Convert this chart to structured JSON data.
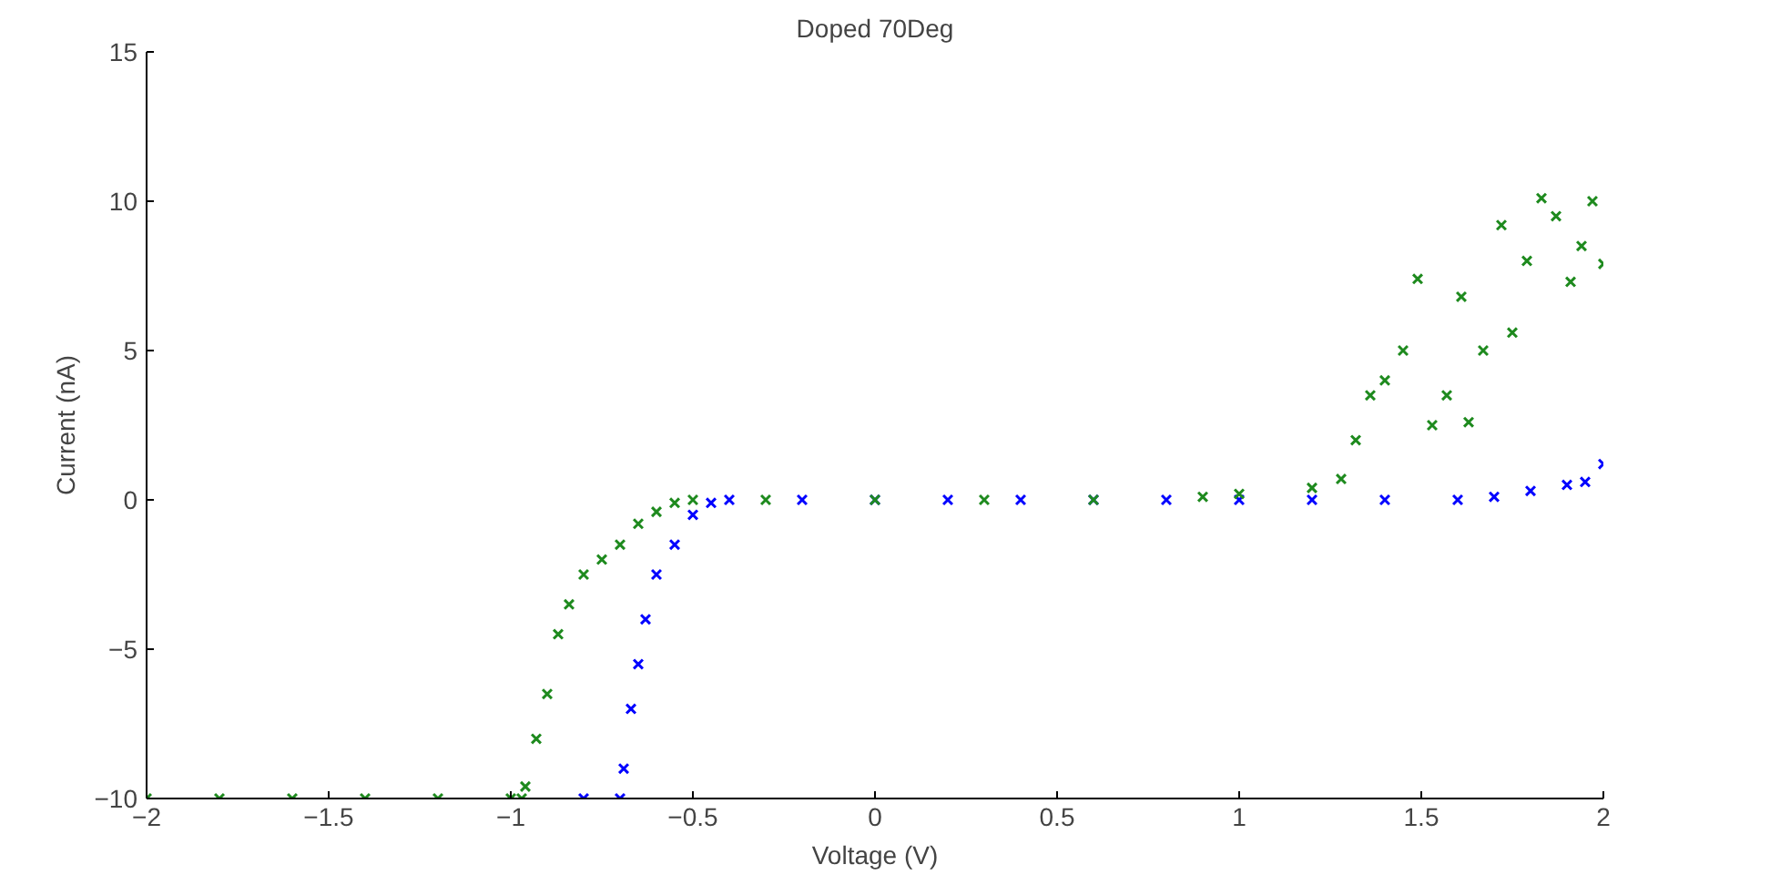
{
  "chart_data": {
    "type": "scatter",
    "title": "Doped 70Deg",
    "xlabel": "Voltage (V)",
    "ylabel": "Current (nA)",
    "xlim": [
      -2,
      2
    ],
    "ylim": [
      -10,
      15
    ],
    "xticks": [
      -2,
      -1.5,
      -1,
      -0.5,
      0,
      0.5,
      1,
      1.5,
      2
    ],
    "yticks": [
      -10,
      -5,
      0,
      5,
      10,
      15
    ],
    "grid": false,
    "marker": "cross",
    "series": [
      {
        "color": "#0000ff",
        "x": [
          -0.8,
          -0.7,
          -0.69,
          -0.67,
          -0.65,
          -0.63,
          -0.6,
          -0.55,
          -0.5,
          -0.45,
          -0.4,
          -0.2,
          0,
          0.2,
          0.4,
          0.6,
          0.8,
          1.0,
          1.2,
          1.4,
          1.6,
          1.7,
          1.8,
          1.9,
          1.95,
          2.0
        ],
        "values": [
          -10,
          -10,
          -9,
          -7,
          -5.5,
          -4,
          -2.5,
          -1.5,
          -0.5,
          -0.1,
          0,
          0,
          0,
          0,
          0,
          0,
          0,
          0,
          0,
          0,
          0,
          0.1,
          0.3,
          0.5,
          0.6,
          1.2
        ]
      },
      {
        "color": "#1e8a1e",
        "x": [
          -2,
          -1.8,
          -1.6,
          -1.4,
          -1.2,
          -1.0,
          -0.97,
          -0.96,
          -0.93,
          -0.9,
          -0.87,
          -0.84,
          -0.8,
          -0.75,
          -0.7,
          -0.65,
          -0.6,
          -0.55,
          -0.5,
          -0.3,
          0,
          0.3,
          0.6,
          0.9,
          1.0,
          1.2,
          1.28,
          1.32,
          1.36,
          1.4,
          1.45,
          1.49,
          1.53,
          1.57,
          1.61,
          1.63,
          1.67,
          1.72,
          1.75,
          1.79,
          1.83,
          1.87,
          1.91,
          1.94,
          1.97,
          2.0
        ],
        "values": [
          -10,
          -10,
          -10,
          -10,
          -10,
          -10,
          -10,
          -9.6,
          -8,
          -6.5,
          -4.5,
          -3.5,
          -2.5,
          -2,
          -1.5,
          -0.8,
          -0.4,
          -0.1,
          0,
          0,
          0,
          0,
          0,
          0.1,
          0.2,
          0.4,
          0.7,
          2,
          3.5,
          4,
          5,
          7.4,
          2.5,
          3.5,
          6.8,
          2.6,
          5,
          9.2,
          5.6,
          8,
          10.1,
          9.5,
          7.3,
          8.5,
          10,
          7.9
        ]
      }
    ]
  }
}
